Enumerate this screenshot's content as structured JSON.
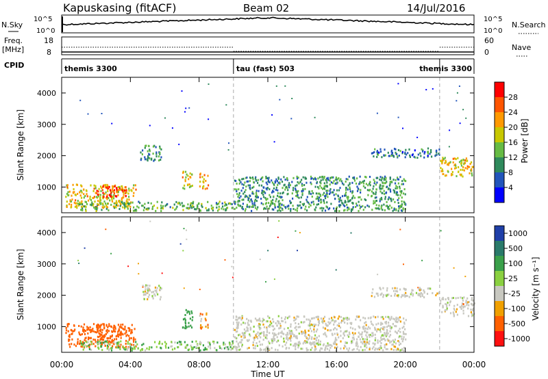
{
  "header": {
    "title": "Kapuskasing (fitACF)",
    "beam": "Beam 02",
    "date": "14/Jul/2016"
  },
  "summary_panels": {
    "nsky_label": "N.Sky",
    "nsky_ticks": [
      "10^5",
      "10^0"
    ],
    "nsearch_label": "N.Search",
    "nsearch_ticks": [
      "10^5",
      "10^0"
    ],
    "freq_label_line1": "Freq.",
    "freq_label_line2": "[MHz]",
    "freq_ticks": [
      "18",
      "8"
    ],
    "nave_label": "Nave",
    "nave_ticks": [
      "60",
      "0"
    ],
    "cpid_label": "CPID",
    "cpid_segments": [
      {
        "label": "themis 3300",
        "start": 0,
        "end": 10
      },
      {
        "label": "tau (fast) 503",
        "start": 10,
        "end": 22
      },
      {
        "label": "themis 3300",
        "start": 22,
        "end": 24
      }
    ]
  },
  "x_axis": {
    "label": "Time UT",
    "ticks": [
      "00:00",
      "04:00",
      "08:00",
      "12:00",
      "16:00",
      "20:00",
      "00:00"
    ],
    "range_hours": [
      0,
      24
    ]
  },
  "power_panel": {
    "ylabel": "Slant Range [km]",
    "yticks": [
      "1000",
      "2000",
      "3000",
      "4000"
    ],
    "colorbar_label": "Power [dB]",
    "colorbar_ticks": [
      "28",
      "24",
      "20",
      "16",
      "12",
      "8",
      "4"
    ],
    "colors": [
      "#0000ff",
      "#2255bb",
      "#2f8a5c",
      "#66bb44",
      "#c8c800",
      "#ff9900",
      "#ff5500",
      "#ff0000"
    ]
  },
  "velocity_panel": {
    "ylabel": "Slant Range [km]",
    "yticks": [
      "1000",
      "2000",
      "3000",
      "4000"
    ],
    "colorbar_label": "Velocity [m s⁻¹]",
    "colorbar_ticks": [
      "1000",
      "500",
      "100",
      "25",
      "-25",
      "-100",
      "-500",
      "-1000"
    ],
    "colors": [
      "#1f3fa8",
      "#2a7a6a",
      "#3aa04a",
      "#8ad040",
      "#c8c8c0",
      "#f0a000",
      "#ff6000",
      "#ff1010"
    ]
  },
  "chart_data": {
    "type": "heatmap",
    "title": "Kapuskasing (fitACF)",
    "subtitle": "Beam 02",
    "xlabel": "Time UT",
    "ylabel": "Slant Range [km]",
    "xlim": [
      0,
      24
    ],
    "ylim": [
      180,
      4500
    ],
    "series": [
      {
        "name": "Power [dB]",
        "vlim": [
          0,
          30
        ]
      },
      {
        "name": "Velocity [m s⁻¹]",
        "vlim": [
          -1000,
          1000
        ]
      }
    ],
    "echo_regions": [
      {
        "t": [
          0.2,
          4.3
        ],
        "range": [
          300,
          1050
        ],
        "power": 18,
        "velocity": -300
      },
      {
        "t": [
          2.0,
          3.8
        ],
        "range": [
          650,
          1000
        ],
        "power": 26,
        "velocity": -400
      },
      {
        "t": [
          4.5,
          5.8
        ],
        "range": [
          1800,
          2300
        ],
        "power": 10,
        "velocity": 0
      },
      {
        "t": [
          7.0,
          7.6
        ],
        "range": [
          900,
          1500
        ],
        "power": 18,
        "velocity": 300
      },
      {
        "t": [
          8.0,
          8.5
        ],
        "range": [
          900,
          1400
        ],
        "power": 20,
        "velocity": -100
      },
      {
        "t": [
          1.0,
          10.0
        ],
        "range": [
          200,
          500
        ],
        "power": 12,
        "velocity": 80
      },
      {
        "t": [
          10.0,
          20.0
        ],
        "range": [
          200,
          1300
        ],
        "power": 10,
        "velocity": 0
      },
      {
        "t": [
          18.0,
          22.0
        ],
        "range": [
          1900,
          2200
        ],
        "power": 8,
        "velocity": 0
      },
      {
        "t": [
          22.0,
          24.0
        ],
        "range": [
          1300,
          1900
        ],
        "power": 18,
        "velocity": -20
      }
    ]
  }
}
